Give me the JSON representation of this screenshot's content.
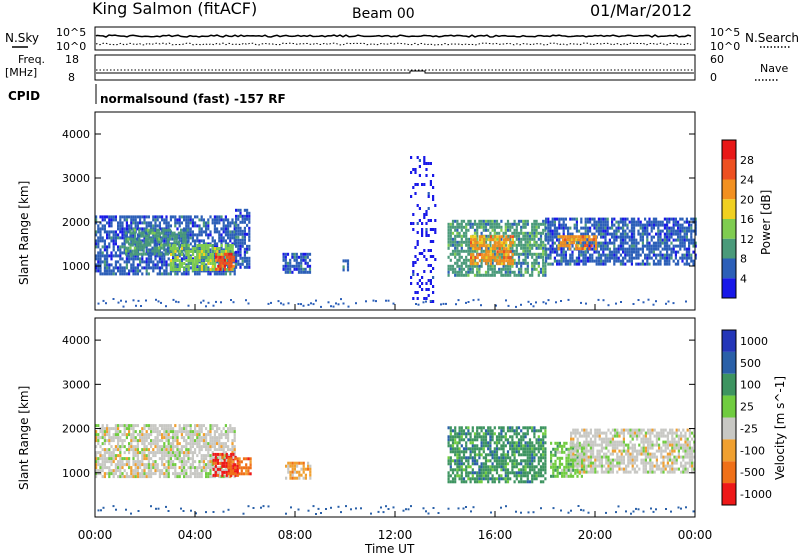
{
  "header": {
    "station": "King Salmon (fitACF)",
    "beam": "Beam 00",
    "date": "01/Mar/2012"
  },
  "noise_panel": {
    "left_label": "N.Sky",
    "right_label": "N.Search",
    "left_ticks": [
      "10^5",
      "10^0"
    ],
    "right_ticks": [
      "10^5",
      "10^0"
    ]
  },
  "freq_panel": {
    "left_label_top": "Freq.",
    "left_label_bottom": "[MHz]",
    "right_label": "Nave",
    "left_ticks": [
      "18",
      "8"
    ],
    "right_ticks": [
      "60",
      "0"
    ]
  },
  "cpid_panel": {
    "label": "CPID",
    "text": "normalsound (fast) -157 RF"
  },
  "power_panel": {
    "ylabel": "Slant Range [km]",
    "yticks": [
      "1000",
      "2000",
      "3000",
      "4000"
    ],
    "colorbar_label": "Power [dB]",
    "colorbar_ticks": [
      "4",
      "8",
      "12",
      "16",
      "20",
      "24",
      "28"
    ],
    "colors": [
      "#1818e8",
      "#2c5fb8",
      "#4a9a7a",
      "#7fcc50",
      "#f0d020",
      "#f29020",
      "#ee5020",
      "#e81818"
    ]
  },
  "velocity_panel": {
    "ylabel": "Slant Range [km]",
    "yticks": [
      "1000",
      "2000",
      "3000",
      "4000"
    ],
    "colorbar_label": "Velocity [m s^-1]",
    "colorbar_ticks": [
      "1000",
      "500",
      "100",
      "25",
      "-25",
      "-100",
      "-500",
      "-1000"
    ],
    "colors": [
      "#2436b8",
      "#2a60a8",
      "#3d9460",
      "#70cc40",
      "#c8c8c4",
      "#f0a030",
      "#f07018",
      "#ee1818"
    ]
  },
  "xaxis": {
    "label": "Time UT",
    "ticks": [
      "00:00",
      "04:00",
      "08:00",
      "12:00",
      "16:00",
      "20:00",
      "00:00"
    ]
  },
  "chart_data": {
    "type": "heatmap",
    "x_range_hours": [
      0,
      24
    ],
    "y_range_km": [
      0,
      4500
    ],
    "power_blobs": [
      {
        "t0": 0.0,
        "t1": 5.6,
        "r0": 850,
        "r1": 2150,
        "level": 1
      },
      {
        "t0": 1.2,
        "t1": 3.7,
        "r0": 1250,
        "r1": 1850,
        "level": 2
      },
      {
        "t0": 3.0,
        "t1": 5.5,
        "r0": 950,
        "r1": 1500,
        "level": 3
      },
      {
        "t0": 4.8,
        "t1": 5.6,
        "r0": 950,
        "r1": 1300,
        "level": 6
      },
      {
        "t0": 5.6,
        "t1": 6.2,
        "r0": 1000,
        "r1": 2300,
        "level": 1
      },
      {
        "t0": 7.5,
        "t1": 8.6,
        "r0": 850,
        "r1": 1300,
        "level": 1
      },
      {
        "t0": 9.9,
        "t1": 10.1,
        "r0": 900,
        "r1": 1150,
        "level": 1
      },
      {
        "t0": 12.6,
        "t1": 13.6,
        "r0": 200,
        "r1": 3500,
        "level": 0
      },
      {
        "t0": 14.1,
        "t1": 18.0,
        "r0": 800,
        "r1": 2050,
        "level": 2
      },
      {
        "t0": 15.0,
        "t1": 16.7,
        "r0": 1050,
        "r1": 1700,
        "level": 5
      },
      {
        "t0": 18.0,
        "t1": 24.0,
        "r0": 1050,
        "r1": 2100,
        "level": 1
      },
      {
        "t0": 18.5,
        "t1": 20.0,
        "r0": 1400,
        "r1": 1700,
        "level": 5
      }
    ],
    "velocity_blobs": [
      {
        "t0": 0.0,
        "t1": 5.6,
        "r0": 900,
        "r1": 2100,
        "level": 4
      },
      {
        "t0": 4.7,
        "t1": 5.7,
        "r0": 950,
        "r1": 1450,
        "level": 7
      },
      {
        "t0": 5.3,
        "t1": 6.2,
        "r0": 950,
        "r1": 1350,
        "level": 6
      },
      {
        "t0": 7.6,
        "t1": 8.6,
        "r0": 850,
        "r1": 1250,
        "level": 5
      },
      {
        "t0": 14.1,
        "t1": 18.0,
        "r0": 800,
        "r1": 2050,
        "level": 2
      },
      {
        "t0": 18.2,
        "t1": 19.6,
        "r0": 900,
        "r1": 1700,
        "level": 3
      },
      {
        "t0": 19.0,
        "t1": 24.0,
        "r0": 1050,
        "r1": 2000,
        "level": 4
      }
    ]
  }
}
